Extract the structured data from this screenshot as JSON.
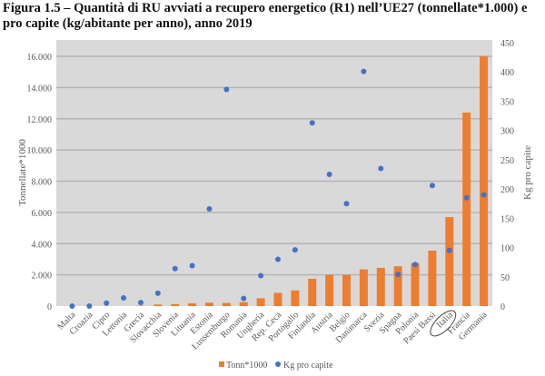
{
  "chart_data": {
    "type": "bar",
    "title": "Figura 1.5 – Quantità di RU avviati a recupero energetico (R1) nell’UE27 (tonnellate*1.000) e pro capite (kg/abitante per anno), anno 2019",
    "categories": [
      "Malta",
      "Croazia",
      "Cipro",
      "Lettonia",
      "Grecia",
      "Slovacchia",
      "Slovenia",
      "Lituania",
      "Estonia",
      "Lussemburgo",
      "Romania",
      "Ungheria",
      "Rep. Ceca",
      "Portogallo",
      "Finlandia",
      "Austria",
      "Belgio",
      "Danimarca",
      "Svezia",
      "Spagna",
      "Polonia",
      "Paesi Bassi",
      "Italia",
      "Francia",
      "Germania"
    ],
    "highlighted_category": "Italia",
    "series": [
      {
        "name": "Tonn*1000",
        "type": "bar",
        "axis": "left",
        "color": "#ed7d31",
        "values": [
          0,
          0,
          0,
          0,
          20,
          100,
          120,
          170,
          220,
          200,
          250,
          500,
          850,
          1000,
          1750,
          2000,
          2000,
          2350,
          2450,
          2550,
          2750,
          3550,
          5700,
          12400,
          16000
        ]
      },
      {
        "name": "Kg pro capite",
        "type": "scatter",
        "axis": "right",
        "color": "#4472c4",
        "values": [
          0,
          0,
          5,
          14,
          6,
          22,
          64,
          69,
          166,
          370,
          13,
          52,
          80,
          96,
          313,
          225,
          175,
          401,
          235,
          54,
          71,
          206,
          95,
          185,
          190
        ]
      }
    ],
    "ylabel": "Tonnellate*1000",
    "y2label": "Kg pro capite",
    "ylim": [
      0,
      16000
    ],
    "y2lim": [
      0,
      450
    ],
    "yticks": [
      "0",
      "2.000",
      "4.000",
      "6.000",
      "8.000",
      "10.000",
      "12.000",
      "14.000",
      "16.000"
    ],
    "y2ticks": [
      "0",
      "50",
      "100",
      "150",
      "200",
      "250",
      "300",
      "350",
      "400",
      "450"
    ],
    "grid": true,
    "legend": "bottom"
  }
}
